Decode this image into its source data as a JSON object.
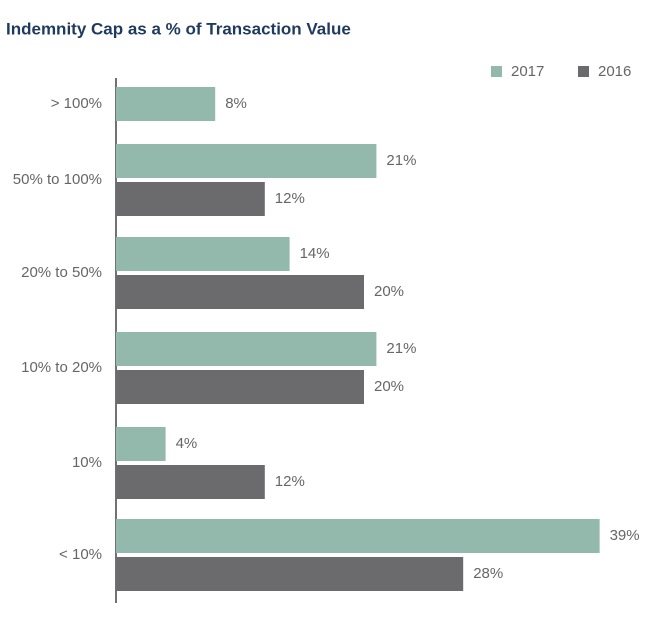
{
  "chart_data": {
    "type": "hbar",
    "title": "Indemnity Cap as a % of Transaction Value",
    "categories": [
      "> 100%",
      "50% to 100%",
      "20% to 50%",
      "10% to 20%",
      "10%",
      "< 10%"
    ],
    "series": [
      {
        "name": "2017",
        "color": "#93b8ac",
        "values": [
          8,
          21,
          14,
          21,
          4,
          39
        ],
        "value_labels": [
          "8%",
          "21%",
          "14%",
          "21%",
          "4%",
          "39%"
        ]
      },
      {
        "name": "2016",
        "color": "#6b6b6e",
        "values": [
          null,
          12,
          20,
          20,
          12,
          28
        ],
        "value_labels": [
          null,
          "12%",
          "20%",
          "20%",
          "12%",
          "28%"
        ]
      }
    ],
    "xlim": [
      0,
      40
    ]
  }
}
